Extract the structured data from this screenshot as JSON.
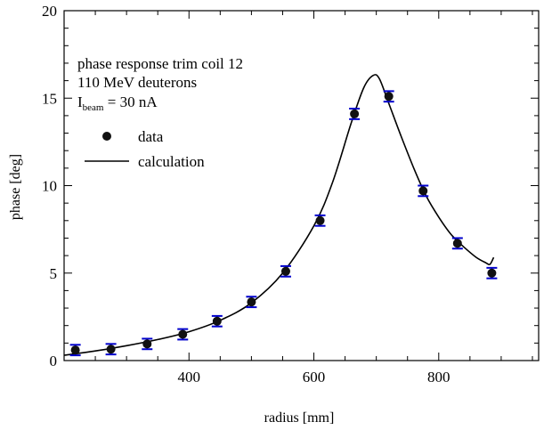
{
  "chart_data": {
    "type": "scatter",
    "xlabel": "radius [mm]",
    "ylabel": "phase [deg]",
    "xlim": [
      200,
      960
    ],
    "ylim": [
      0,
      20
    ],
    "grid": false,
    "x_ticks": [
      400,
      600,
      800
    ],
    "y_ticks": [
      0,
      5,
      10,
      15,
      20
    ],
    "annotation_lines": [
      "phase response trim coil 12",
      "110 MeV deuterons"
    ],
    "beam_label": {
      "prefix": "I",
      "subscript": "beam",
      "suffix": " = 30 nA"
    },
    "legend": {
      "placement": "upper-left",
      "entries": [
        "data",
        "calculation"
      ]
    },
    "colors": {
      "errorbar": "#0000cc",
      "marker": "#111111",
      "line": "#000000"
    },
    "series": [
      {
        "name": "data",
        "type": "scatter",
        "points": [
          {
            "x": 218,
            "y": 0.6,
            "err": 0.3
          },
          {
            "x": 275,
            "y": 0.65,
            "err": 0.3
          },
          {
            "x": 333,
            "y": 0.95,
            "err": 0.3
          },
          {
            "x": 390,
            "y": 1.5,
            "err": 0.3
          },
          {
            "x": 445,
            "y": 2.25,
            "err": 0.3
          },
          {
            "x": 500,
            "y": 3.35,
            "err": 0.3
          },
          {
            "x": 555,
            "y": 5.1,
            "err": 0.3
          },
          {
            "x": 610,
            "y": 8.0,
            "err": 0.3
          },
          {
            "x": 665,
            "y": 14.1,
            "err": 0.3
          },
          {
            "x": 720,
            "y": 15.1,
            "err": 0.3
          },
          {
            "x": 775,
            "y": 9.7,
            "err": 0.3
          },
          {
            "x": 830,
            "y": 6.7,
            "err": 0.3
          },
          {
            "x": 885,
            "y": 5.0,
            "err": 0.3
          }
        ]
      },
      {
        "name": "calculation",
        "type": "line",
        "points": [
          [
            200,
            0.3
          ],
          [
            250,
            0.55
          ],
          [
            300,
            0.85
          ],
          [
            350,
            1.2
          ],
          [
            400,
            1.65
          ],
          [
            450,
            2.3
          ],
          [
            500,
            3.3
          ],
          [
            550,
            5.0
          ],
          [
            600,
            7.7
          ],
          [
            630,
            10.2
          ],
          [
            660,
            13.6
          ],
          [
            680,
            15.6
          ],
          [
            695,
            16.3
          ],
          [
            705,
            16.1
          ],
          [
            720,
            14.7
          ],
          [
            740,
            12.8
          ],
          [
            760,
            11.0
          ],
          [
            780,
            9.4
          ],
          [
            800,
            8.2
          ],
          [
            820,
            7.2
          ],
          [
            840,
            6.5
          ],
          [
            860,
            5.9
          ],
          [
            875,
            5.6
          ],
          [
            882,
            5.5
          ],
          [
            888,
            5.9
          ]
        ]
      }
    ]
  }
}
